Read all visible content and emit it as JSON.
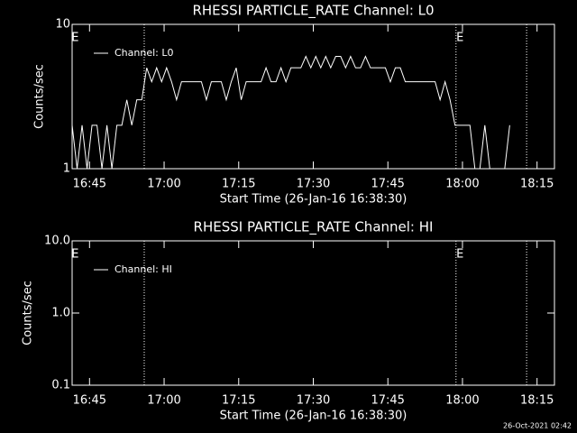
{
  "chart_data": [
    {
      "type": "line",
      "title": "RHESSI PARTICLE_RATE Channel: L0",
      "x_label": "Start Time (26-Jan-16 16:38:30)",
      "y_label": "Counts/sec",
      "log_y": true,
      "xlim": [
        3,
        100
      ],
      "xticks": [
        {
          "value": 6.5,
          "label": "16:45"
        },
        {
          "value": 21.5,
          "label": "17:00"
        },
        {
          "value": 36.5,
          "label": "17:15"
        },
        {
          "value": 51.5,
          "label": "17:30"
        },
        {
          "value": 66.5,
          "label": "17:45"
        },
        {
          "value": 81.5,
          "label": "18:00"
        },
        {
          "value": 96.5,
          "label": "18:15"
        }
      ],
      "ylim": [
        1,
        10
      ],
      "yticks": [
        1,
        10
      ],
      "vlines": [
        17.5,
        80.2,
        94.4
      ],
      "annotations": [
        {
          "x": 3.6,
          "text": "E"
        },
        {
          "x": 81,
          "text": "E"
        }
      ],
      "legend": "upper left",
      "series": [
        {
          "name": "Channel: L0",
          "color": "#ffffff",
          "x": [
            3,
            4,
            5,
            6,
            7,
            8,
            9,
            10,
            11,
            12,
            13,
            14,
            15,
            16,
            17,
            18,
            19,
            20,
            21,
            22,
            23,
            24,
            25,
            26,
            27,
            28,
            29,
            30,
            31,
            32,
            33,
            34,
            35,
            36,
            37,
            38,
            39,
            40,
            41,
            42,
            43,
            44,
            45,
            46,
            47,
            48,
            49,
            50,
            51,
            52,
            53,
            54,
            55,
            56,
            57,
            58,
            59,
            60,
            61,
            62,
            63,
            64,
            65,
            66,
            67,
            68,
            69,
            70,
            71,
            72,
            73,
            74,
            75,
            76,
            77,
            78,
            79,
            80,
            81,
            82,
            83,
            84,
            85,
            86,
            87,
            88,
            89,
            90,
            91
          ],
          "values": [
            2,
            1,
            2,
            1,
            2,
            2,
            1,
            2,
            1,
            2,
            2,
            3,
            2,
            3,
            3,
            5,
            4,
            5,
            4,
            5,
            4,
            3,
            4,
            4,
            4,
            4,
            4,
            3,
            4,
            4,
            4,
            3,
            4,
            5,
            3,
            4,
            4,
            4,
            4,
            5,
            4,
            4,
            5,
            4,
            5,
            5,
            5,
            6,
            5,
            6,
            5,
            6,
            5,
            6,
            6,
            5,
            6,
            5,
            5,
            6,
            5,
            5,
            5,
            5,
            4,
            5,
            5,
            4,
            4,
            4,
            4,
            4,
            4,
            4,
            3,
            4,
            3,
            2,
            2,
            2,
            2,
            1,
            1,
            2,
            1,
            1,
            1,
            1,
            2
          ]
        }
      ]
    },
    {
      "type": "line",
      "title": "RHESSI PARTICLE_RATE Channel: HI",
      "x_label": "Start Time (26-Jan-16 16:38:30)",
      "y_label": "Counts/sec",
      "log_y": true,
      "xlim": [
        3,
        100
      ],
      "xticks": [
        {
          "value": 6.5,
          "label": "16:45"
        },
        {
          "value": 21.5,
          "label": "17:00"
        },
        {
          "value": 36.5,
          "label": "17:15"
        },
        {
          "value": 51.5,
          "label": "17:30"
        },
        {
          "value": 66.5,
          "label": "17:45"
        },
        {
          "value": 81.5,
          "label": "18:00"
        },
        {
          "value": 96.5,
          "label": "18:15"
        }
      ],
      "ylim": [
        0.1,
        10
      ],
      "yticks": [
        0.1,
        {
          "value": 1,
          "label": "1.0"
        },
        {
          "value": 10,
          "label": "10.0"
        }
      ],
      "vlines": [
        17.5,
        80.2,
        94.4
      ],
      "annotations": [
        {
          "x": 3.6,
          "text": "E"
        },
        {
          "x": 81,
          "text": "E"
        }
      ],
      "legend": "upper left",
      "series": [
        {
          "name": "Channel: HI",
          "color": "#ffffff",
          "x": [],
          "values": []
        }
      ]
    }
  ],
  "footer": "26-Oct-2021 02:42"
}
